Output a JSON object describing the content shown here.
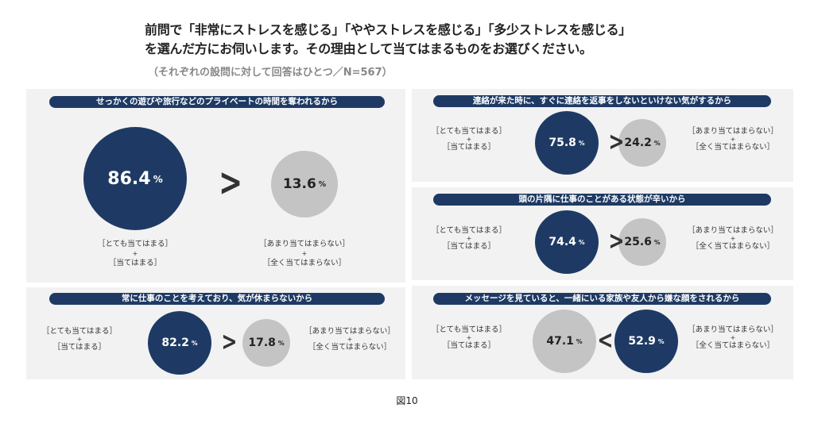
{
  "header": {
    "title_line1": "前問で「非常にストレスを感じる」「ややストレスを感じる」「多少ストレスを感じる」",
    "title_line2": "を選んだ方にお伺いします。その理由として当てはまるものをお選びください。",
    "subtitle": "（それぞれの設問に対して回答はひとつ／N=567）"
  },
  "labels": {
    "agree_1": "［とても当てはまる］",
    "agree_2": "［当てはまる］",
    "disagree_1": "［あまり当てはまらない］",
    "disagree_2": "［全く当てはまらない］",
    "plus": "+",
    "percent": "%"
  },
  "colors": {
    "agree": "#1e3a64",
    "disagree": "#c4c4c4",
    "panel": "#f2f2f2"
  },
  "chart_data": {
    "type": "bar",
    "categories": [
      "せっかくの遊びや旅行などのプライベートの時間を奪われるから",
      "連絡が来た時に、すぐに連絡を返事をしないといけない気がするから",
      "頭の片隅に仕事のことがある状態が辛いから",
      "常に仕事のことを考えており、気が休まらないから",
      "メッセージを見ていると、一緒にいる家族や友人から嫌な顔をされるから"
    ],
    "series": [
      {
        "name": "［とても当てはまる］+［当てはまる］",
        "values": [
          "86.4",
          "75.8",
          "74.4",
          "82.2",
          "47.1"
        ]
      },
      {
        "name": "［あまり当てはまらない］+［全く当てはまらない］",
        "values": [
          "13.6",
          "24.2",
          "25.6",
          "17.8",
          "52.9"
        ]
      }
    ],
    "comparison": [
      ">",
      ">",
      ">",
      ">",
      "<"
    ],
    "unit": "%"
  },
  "footer": {
    "figure_label": "図10"
  }
}
